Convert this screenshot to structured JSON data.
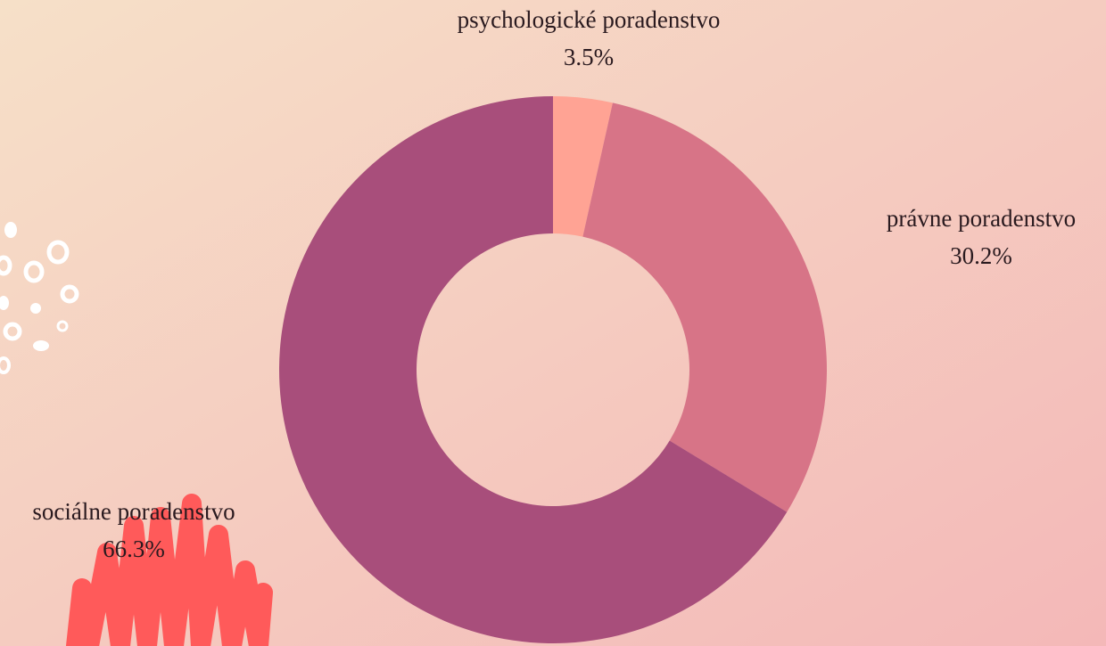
{
  "chart_data": {
    "type": "donut",
    "categories": [
      "psychologické poradenstvo",
      "právne poradenstvo",
      "sociálne poradenstvo"
    ],
    "values": [
      3.5,
      30.2,
      66.3
    ],
    "value_labels": [
      "3.5%",
      "30.2%",
      "66.3%"
    ],
    "colors": [
      "#ffa394",
      "#d77487",
      "#a84e7b"
    ]
  }
}
